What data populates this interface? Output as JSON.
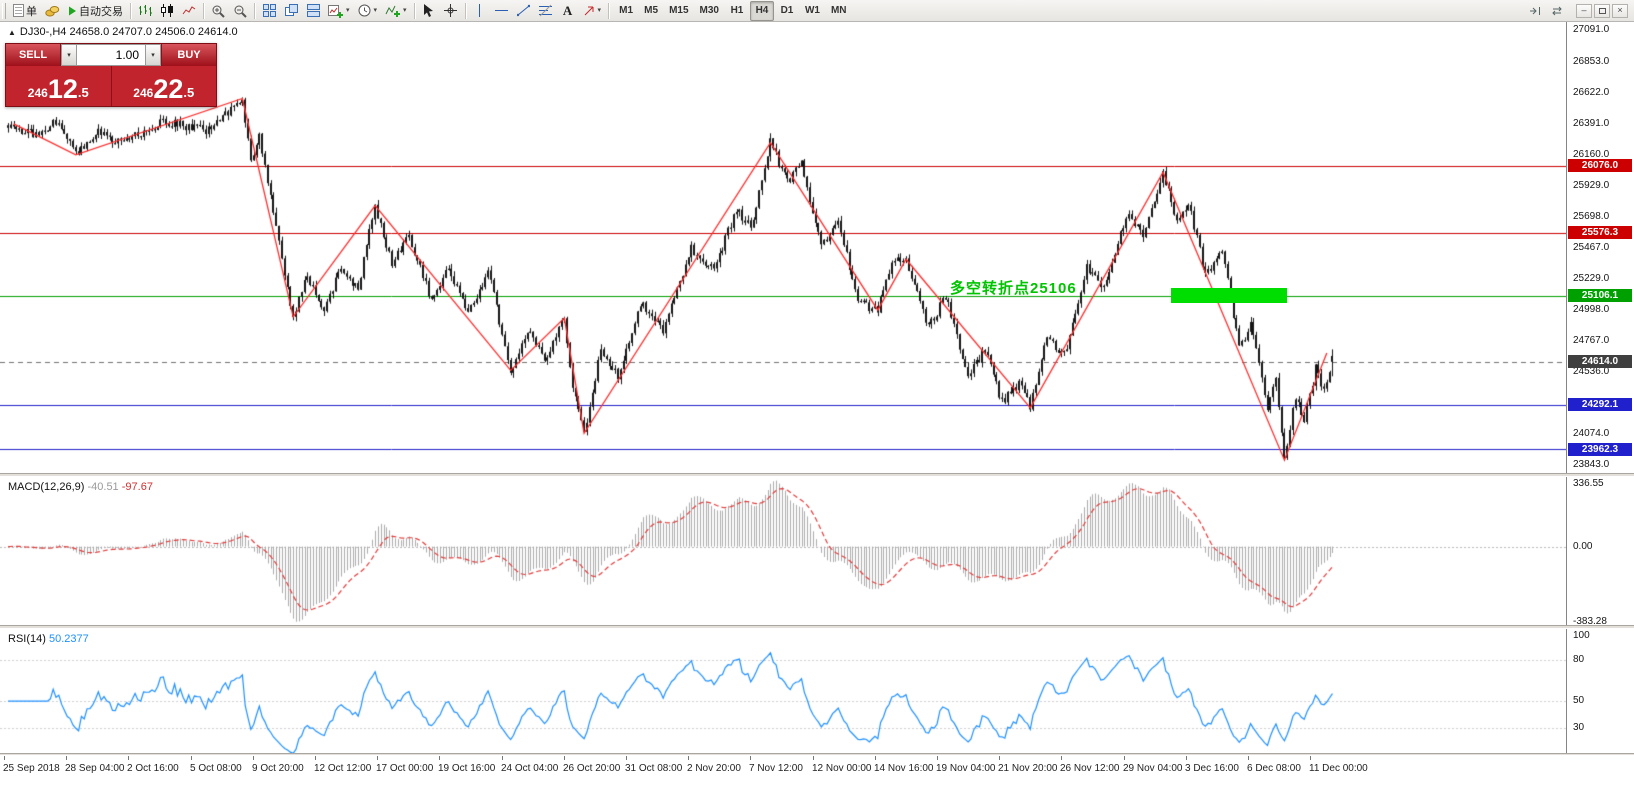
{
  "icons": {
    "caret": "▾",
    "up_triangle": "▲",
    "minimize": "–",
    "close": "×"
  },
  "toolbar": {
    "new_order_label": "单",
    "autotrading_label": "自动交易",
    "text_tool_label": "A",
    "timeframes": [
      "M1",
      "M5",
      "M15",
      "M30",
      "H1",
      "H4",
      "D1",
      "W1",
      "MN"
    ],
    "active_timeframe": "H4"
  },
  "trade_panel": {
    "sell_label": "SELL",
    "buy_label": "BUY",
    "lot_value": "1.00",
    "sell_price_small": "246",
    "sell_price_big": "12",
    "sell_price_frac": ".5",
    "buy_price_small": "246",
    "buy_price_big": "22",
    "buy_price_frac": ".5"
  },
  "chart_header": {
    "symbol_ohlc": "DJ30-,H4  24658.0 24707.0 24506.0 24614.0"
  },
  "annotation": {
    "text": "多空转折点25106",
    "color": "#00c400"
  },
  "macd_panel": {
    "label": "MACD(12,26,9)",
    "main_value": "-40.51",
    "signal_value": "-97.67",
    "axis_labels": [
      "336.55",
      "0.00",
      "-383.28"
    ]
  },
  "rsi_panel": {
    "label": "RSI(14)",
    "value": "50.2377",
    "axis_labels": [
      "100",
      "80",
      "50",
      "30"
    ]
  },
  "chart_data": {
    "type": "candlestick",
    "symbol": "DJ30-",
    "timeframe": "H4",
    "bars": 470,
    "last_ohlc": [
      24658.0,
      24707.0,
      24506.0,
      24614.0
    ],
    "ylim": [
      23784,
      27151
    ],
    "price_axis_labels": [
      27091.0,
      26853.0,
      26622.0,
      26391.0,
      26160.0,
      25929.0,
      25698.0,
      25467.0,
      25229.0,
      24998.0,
      24767.0,
      24536.0,
      24074.0,
      23843.0
    ],
    "levels": [
      {
        "price": 26076.0,
        "label": "26076.0",
        "color": "#cc0000"
      },
      {
        "price": 25576.3,
        "label": "25576.3",
        "color": "#cc0000"
      },
      {
        "price": 25106.1,
        "label": "25106.1",
        "color": "#00a000"
      },
      {
        "price": 24292.1,
        "label": "24292.1",
        "color": "#2020cc"
      },
      {
        "price": 23962.3,
        "label": "23962.3",
        "color": "#2020cc"
      }
    ],
    "current_price": {
      "price": 24614.0,
      "label": "24614.0",
      "color": "#3f3f3f"
    },
    "highlight_rect": {
      "price": 25106.1,
      "bar_from": 412,
      "bar_to": 453,
      "color": "#00dd00"
    },
    "zigzag": [
      [
        2,
        26390
      ],
      [
        24,
        26160
      ],
      [
        83,
        26580
      ],
      [
        101,
        24950
      ],
      [
        130,
        25780
      ],
      [
        178,
        24550
      ],
      [
        197,
        24940
      ],
      [
        204,
        24080
      ],
      [
        270,
        26250
      ],
      [
        308,
        25000
      ],
      [
        318,
        25380
      ],
      [
        362,
        24270
      ],
      [
        409,
        26030
      ],
      [
        452,
        23880
      ],
      [
        467,
        24680
      ]
    ],
    "path": [
      [
        0,
        26380
      ],
      [
        10,
        26300
      ],
      [
        18,
        26420
      ],
      [
        24,
        26160
      ],
      [
        32,
        26330
      ],
      [
        40,
        26250
      ],
      [
        55,
        26410
      ],
      [
        70,
        26340
      ],
      [
        83,
        26580
      ],
      [
        86,
        26120
      ],
      [
        89,
        26300
      ],
      [
        95,
        25620
      ],
      [
        101,
        24950
      ],
      [
        106,
        25260
      ],
      [
        112,
        25010
      ],
      [
        118,
        25310
      ],
      [
        124,
        25160
      ],
      [
        130,
        25780
      ],
      [
        136,
        25360
      ],
      [
        142,
        25560
      ],
      [
        150,
        25060
      ],
      [
        156,
        25310
      ],
      [
        163,
        24990
      ],
      [
        170,
        25290
      ],
      [
        178,
        24550
      ],
      [
        184,
        24860
      ],
      [
        190,
        24610
      ],
      [
        197,
        24940
      ],
      [
        200,
        24420
      ],
      [
        204,
        24080
      ],
      [
        210,
        24700
      ],
      [
        216,
        24510
      ],
      [
        224,
        25060
      ],
      [
        232,
        24860
      ],
      [
        242,
        25460
      ],
      [
        250,
        25290
      ],
      [
        258,
        25760
      ],
      [
        263,
        25610
      ],
      [
        270,
        26250
      ],
      [
        276,
        25960
      ],
      [
        281,
        26090
      ],
      [
        288,
        25470
      ],
      [
        294,
        25660
      ],
      [
        301,
        25060
      ],
      [
        308,
        25000
      ],
      [
        313,
        25360
      ],
      [
        318,
        25380
      ],
      [
        326,
        24860
      ],
      [
        332,
        25110
      ],
      [
        340,
        24510
      ],
      [
        346,
        24710
      ],
      [
        352,
        24310
      ],
      [
        358,
        24460
      ],
      [
        362,
        24270
      ],
      [
        368,
        24810
      ],
      [
        374,
        24660
      ],
      [
        382,
        25310
      ],
      [
        388,
        25160
      ],
      [
        396,
        25710
      ],
      [
        402,
        25560
      ],
      [
        409,
        26030
      ],
      [
        414,
        25660
      ],
      [
        418,
        25810
      ],
      [
        424,
        25260
      ],
      [
        430,
        25460
      ],
      [
        436,
        24710
      ],
      [
        440,
        24910
      ],
      [
        446,
        24260
      ],
      [
        449,
        24510
      ],
      [
        452,
        23900
      ],
      [
        456,
        24360
      ],
      [
        459,
        24160
      ],
      [
        463,
        24560
      ],
      [
        466,
        24410
      ],
      [
        469,
        24614
      ]
    ],
    "macd": {
      "fast": 12,
      "slow": 26,
      "signal": 9
    },
    "rsi_period": 14,
    "render_seed": 20181211,
    "close_noise": 70,
    "wick_noise": 38,
    "time_labels": [
      "25 Sep 2018",
      "28 Sep 04:00",
      "2 Oct 16:00",
      "5 Oct 08:00",
      "9 Oct 20:00",
      "12 Oct 12:00",
      "17 Oct 00:00",
      "19 Oct 16:00",
      "24 Oct 04:00",
      "26 Oct 20:00",
      "31 Oct 08:00",
      "2 Nov 20:00",
      "7 Nov 12:00",
      "12 Nov 00:00",
      "14 Nov 16:00",
      "19 Nov 04:00",
      "21 Nov 20:00",
      "26 Nov 12:00",
      "29 Nov 04:00",
      "3 Dec 16:00",
      "6 Dec 08:00",
      "11 Dec 00:00"
    ]
  }
}
